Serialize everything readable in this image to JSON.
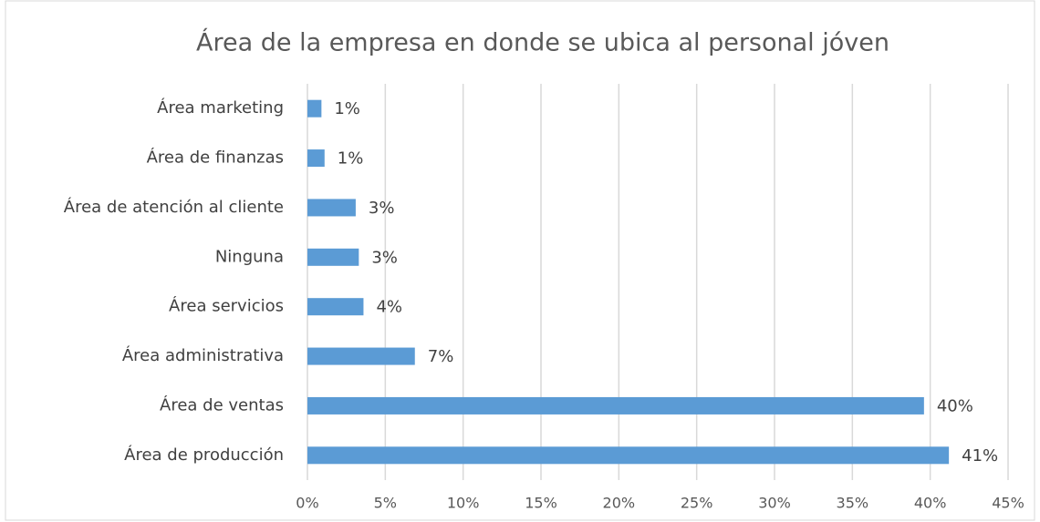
{
  "chart_data": {
    "type": "bar",
    "orientation": "horizontal",
    "title": "Área de la empresa en donde se ubica al personal jóven",
    "categories": [
      "Área marketing",
      "Área de finanzas",
      "Área de atención al cliente",
      "Ninguna",
      "Área servicios",
      "Área administrativa",
      "Área de ventas",
      "Área de producción"
    ],
    "values": [
      0.9,
      1.1,
      3.1,
      3.3,
      3.6,
      6.9,
      39.6,
      41.2
    ],
    "value_labels": [
      "1%",
      "1%",
      "3%",
      "3%",
      "4%",
      "7%",
      "40%",
      "41%"
    ],
    "color": "#5b9bd5",
    "xlim": [
      0,
      45
    ],
    "xticks": [
      {
        "value": 0,
        "label": "0%"
      },
      {
        "value": 5,
        "label": "5%"
      },
      {
        "value": 10,
        "label": "10%"
      },
      {
        "value": 15,
        "label": "15%"
      },
      {
        "value": 20,
        "label": "20%"
      },
      {
        "value": 25,
        "label": "25%"
      },
      {
        "value": 30,
        "label": "30%"
      },
      {
        "value": 35,
        "label": "35%"
      },
      {
        "value": 40,
        "label": "40%"
      },
      {
        "value": 45,
        "label": "45%"
      }
    ],
    "grid": true
  }
}
